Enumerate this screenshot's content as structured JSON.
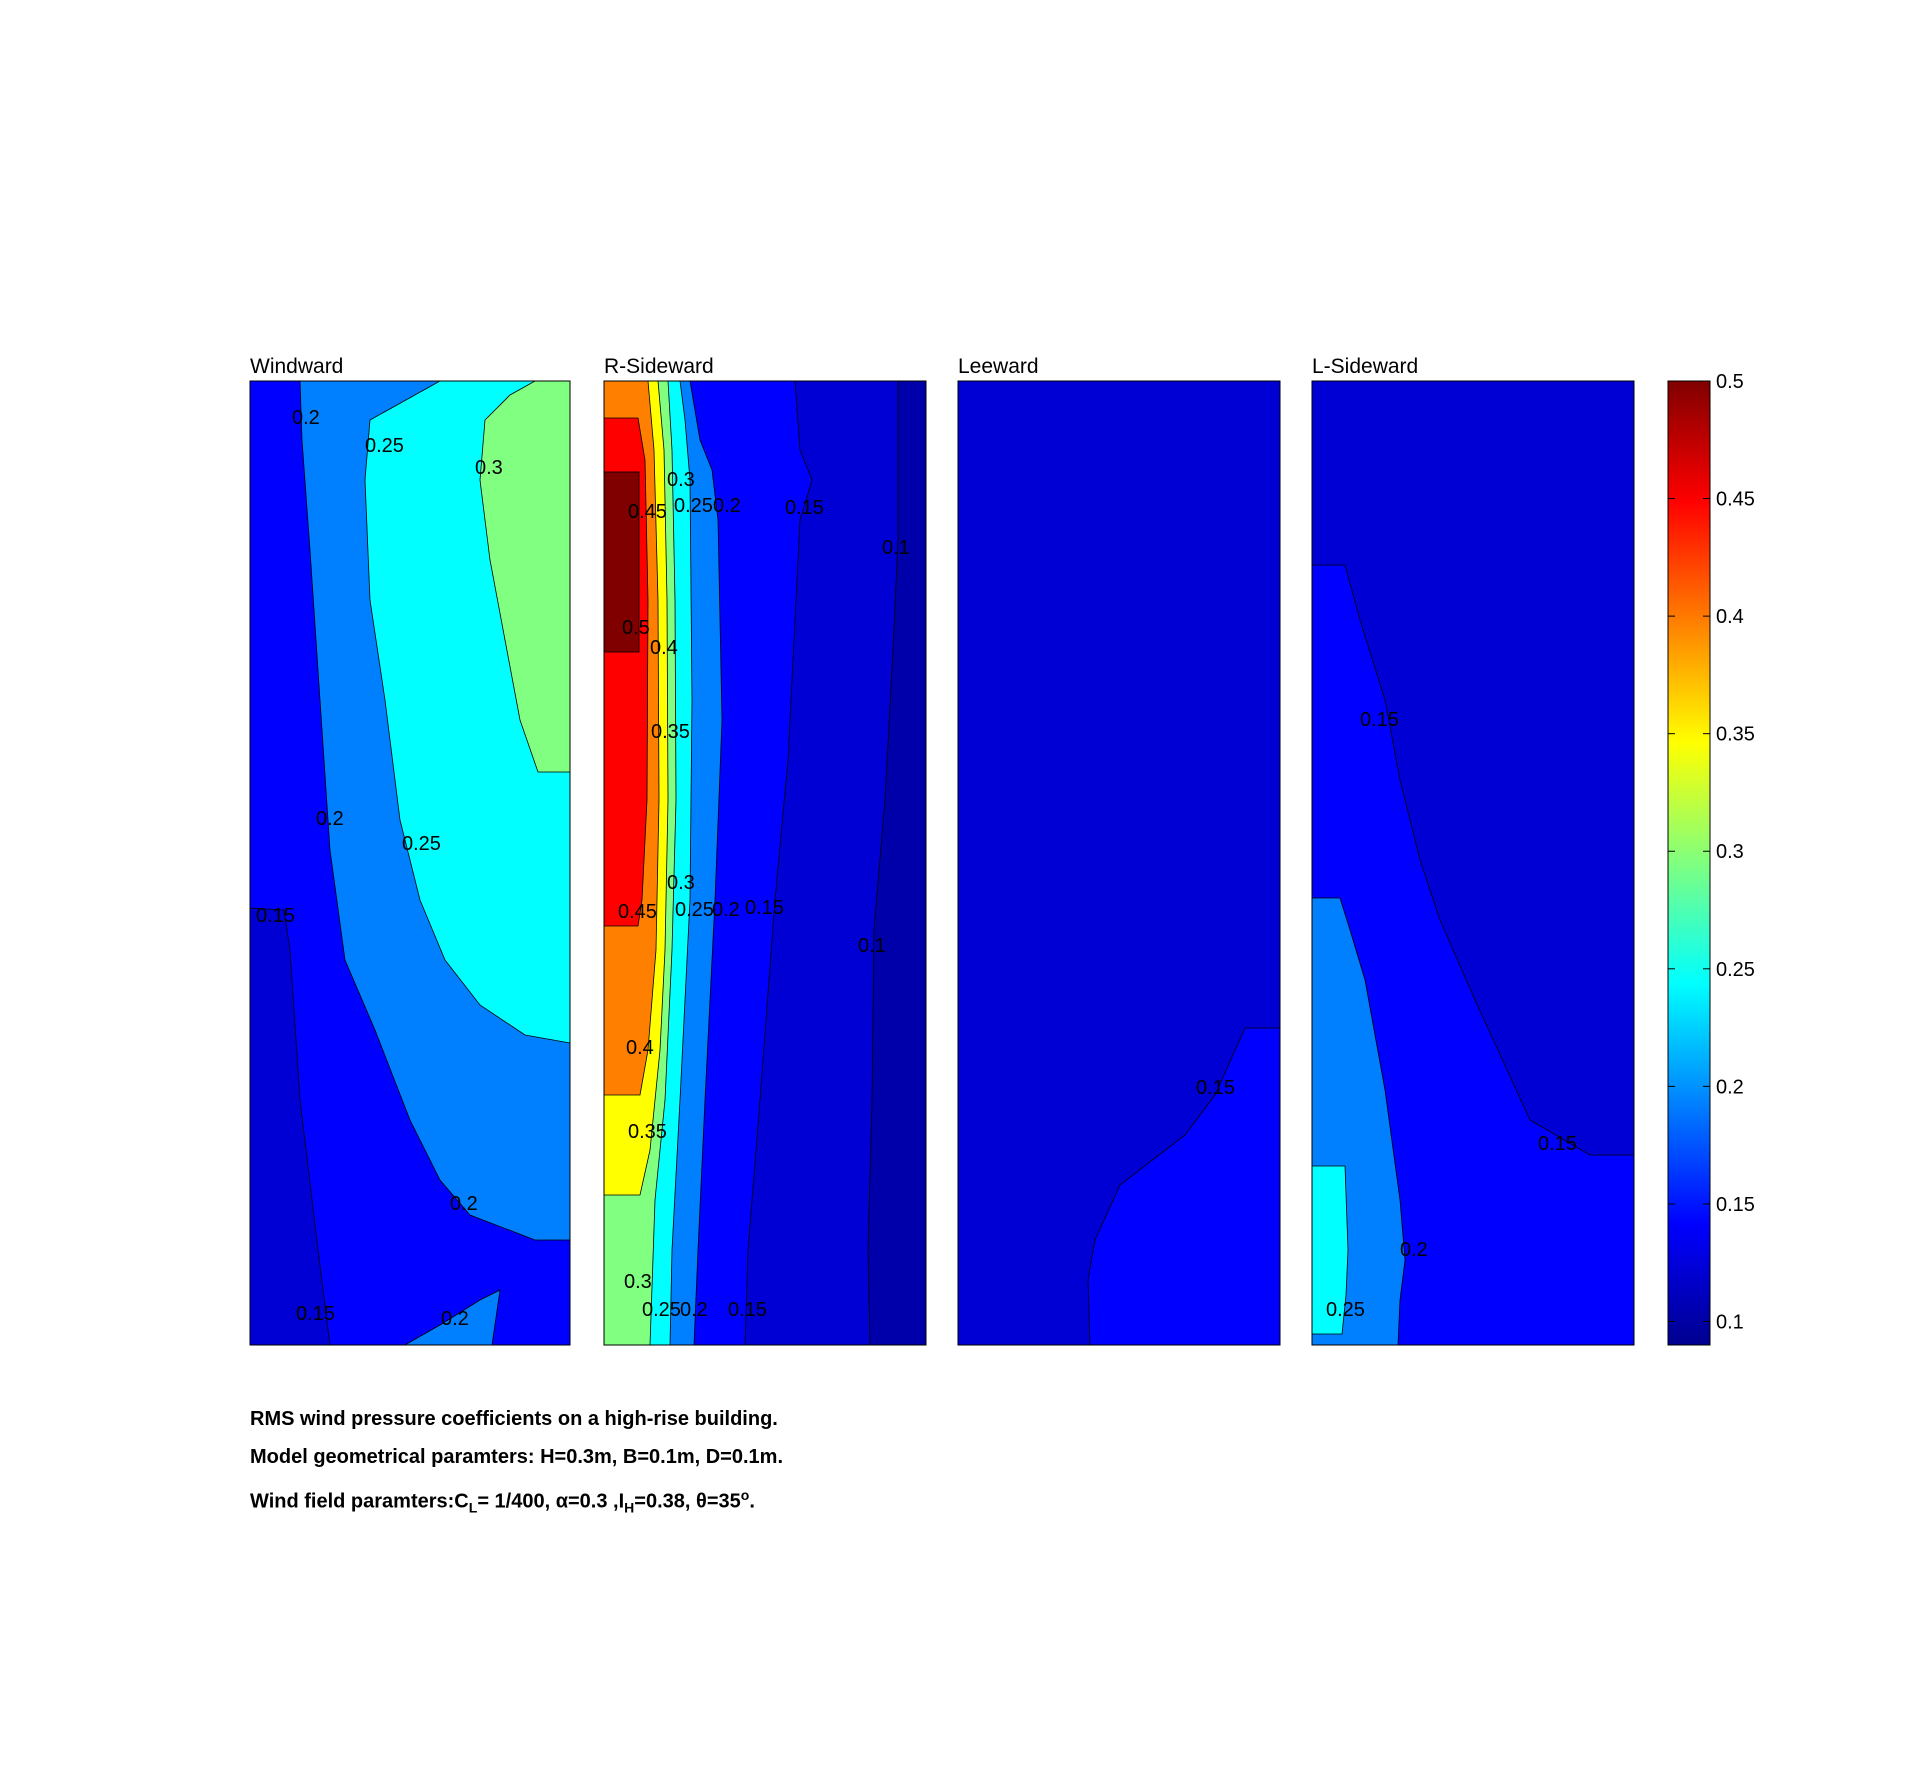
{
  "chart_data": {
    "type": "contour",
    "colormap": "jet",
    "panels": [
      {
        "title": "Windward",
        "level_labels": [
          "0.2",
          "0.25",
          "0.3",
          "0.2",
          "0.25",
          "0.15",
          "0.2",
          "0.15",
          "0.2"
        ]
      },
      {
        "title": "R-Sideward",
        "level_labels": [
          "0.3",
          "0.45",
          "0.25",
          "0.2",
          "0.15",
          "0.1",
          "0.5",
          "0.4",
          "0.35",
          "0.3",
          "0.45",
          "0.25",
          "0.2",
          "0.15",
          "0.1",
          "0.4",
          "0.35",
          "0.3",
          "0.25",
          "0.2",
          "0.15"
        ]
      },
      {
        "title": "Leeward",
        "level_labels": [
          "0.15"
        ]
      },
      {
        "title": "L-Sideward",
        "level_labels": [
          "0.15",
          "0.15",
          "0.2",
          "0.25"
        ]
      }
    ],
    "colorbar": {
      "range": [
        0.09,
        0.5
      ],
      "ticks": [
        "0.1",
        "0.15",
        "0.2",
        "0.25",
        "0.3",
        "0.35",
        "0.4",
        "0.45",
        "0.5"
      ]
    }
  },
  "caption": {
    "line1": "RMS wind pressure coefficients on a high-rise building.",
    "line2": "Model geometrical paramters: H=0.3m, B=0.1m, D=0.1m.",
    "line3": {
      "a": "Wind field paramters:C",
      "a_sub": "L",
      "b": "= 1/400, α=0.3 ,I",
      "b_sub": "H",
      "c": "=0.38, θ=35",
      "c_sup": "o",
      "d": "."
    }
  }
}
